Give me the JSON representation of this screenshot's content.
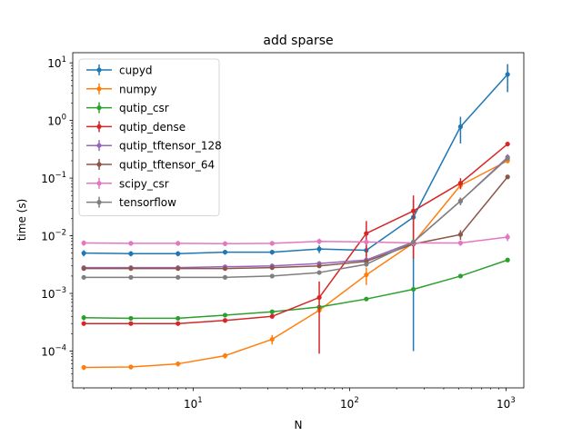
{
  "chart_data": {
    "type": "line",
    "title": "add sparse",
    "xlabel": "N",
    "ylabel": "time (s)",
    "xscale": "log",
    "yscale": "log",
    "xlim": [
      1.7,
      1300
    ],
    "ylim": [
      2.3e-05,
      15
    ],
    "grid": false,
    "legend_position": "top-left",
    "x": [
      2,
      4,
      8,
      16,
      32,
      64,
      128,
      256,
      512,
      1024
    ],
    "x_ticks": [
      {
        "value": 10,
        "base": "10",
        "exp": "1"
      },
      {
        "value": 100,
        "base": "10",
        "exp": "2"
      },
      {
        "value": 1000,
        "base": "10",
        "exp": "3"
      }
    ],
    "y_ticks": [
      {
        "value": 0.0001,
        "base": "10",
        "exp": "−4"
      },
      {
        "value": 0.001,
        "base": "10",
        "exp": "−3"
      },
      {
        "value": 0.01,
        "base": "10",
        "exp": "−2"
      },
      {
        "value": 0.1,
        "base": "10",
        "exp": "−1"
      },
      {
        "value": 1,
        "base": "10",
        "exp": "0"
      },
      {
        "value": 10,
        "base": "10",
        "exp": "1"
      }
    ],
    "series": [
      {
        "name": "cupyd",
        "color": "#1f77b4",
        "values": [
          0.005,
          0.0049,
          0.0049,
          0.0052,
          0.0052,
          0.0059,
          0.0056,
          0.021,
          0.78,
          6.3
        ],
        "errors": [
          0.0006,
          0.0005,
          0.0005,
          0.0005,
          0.0005,
          0.0009,
          0.0012,
          0.0209,
          0.38,
          3.2
        ]
      },
      {
        "name": "numpy",
        "color": "#ff7f0e",
        "values": [
          5.2e-05,
          5.3e-05,
          6e-05,
          8.3e-05,
          0.00016,
          0.00051,
          0.0021,
          0.0075,
          0.075,
          0.2
        ],
        "errors": [
          5e-06,
          5e-06,
          6e-06,
          9e-06,
          3e-05,
          4e-05,
          0.0007,
          0.001,
          0.01,
          0.02
        ]
      },
      {
        "name": "qutip_csr",
        "color": "#2ca02c",
        "values": [
          0.00038,
          0.00037,
          0.00037,
          0.00042,
          0.00048,
          0.00058,
          0.0008,
          0.00118,
          0.002,
          0.0038
        ],
        "errors": [
          4e-05,
          3e-05,
          3e-05,
          3e-05,
          4e-05,
          5e-05,
          6e-05,
          8e-05,
          0.00015,
          0.0003
        ]
      },
      {
        "name": "qutip_dense",
        "color": "#d62728",
        "values": [
          0.0003,
          0.0003,
          0.0003,
          0.00034,
          0.0004,
          0.00085,
          0.011,
          0.027,
          0.082,
          0.39
        ],
        "errors": [
          2e-05,
          2e-05,
          2e-05,
          3e-05,
          3e-05,
          0.00076,
          0.007,
          0.023,
          0.018,
          0.03
        ]
      },
      {
        "name": "qutip_tftensor_128",
        "color": "#9467bd",
        "values": [
          0.0028,
          0.0028,
          0.0028,
          0.0029,
          0.003,
          0.0033,
          0.0038,
          0.0078,
          0.04,
          0.23
        ],
        "errors": [
          0.0002,
          0.0002,
          0.0002,
          0.0002,
          0.0002,
          0.0003,
          0.0003,
          0.0008,
          0.006,
          0.03
        ]
      },
      {
        "name": "qutip_tftensor_64",
        "color": "#8c564b",
        "values": [
          0.0027,
          0.0027,
          0.0027,
          0.0027,
          0.0028,
          0.003,
          0.0036,
          0.0072,
          0.0105,
          0.105
        ],
        "errors": [
          0.0002,
          0.0002,
          0.0002,
          0.0002,
          0.0002,
          0.0002,
          0.0003,
          0.0006,
          0.002,
          0.008
        ]
      },
      {
        "name": "scipy_csr",
        "color": "#e377c2",
        "values": [
          0.0075,
          0.0074,
          0.0074,
          0.0073,
          0.0074,
          0.008,
          0.0078,
          0.0075,
          0.0075,
          0.0095
        ],
        "errors": [
          0.0008,
          0.0007,
          0.0007,
          0.0007,
          0.0007,
          0.0009,
          0.0008,
          0.0008,
          0.0008,
          0.0014
        ]
      },
      {
        "name": "tensorflow",
        "color": "#7f7f7f",
        "values": [
          0.0019,
          0.0019,
          0.0019,
          0.0019,
          0.002,
          0.0023,
          0.0032,
          0.0078,
          0.04,
          0.22
        ],
        "errors": [
          0.0001,
          0.0001,
          0.0001,
          0.0001,
          0.0001,
          0.0002,
          0.0003,
          0.0006,
          0.006,
          0.02
        ]
      }
    ]
  }
}
